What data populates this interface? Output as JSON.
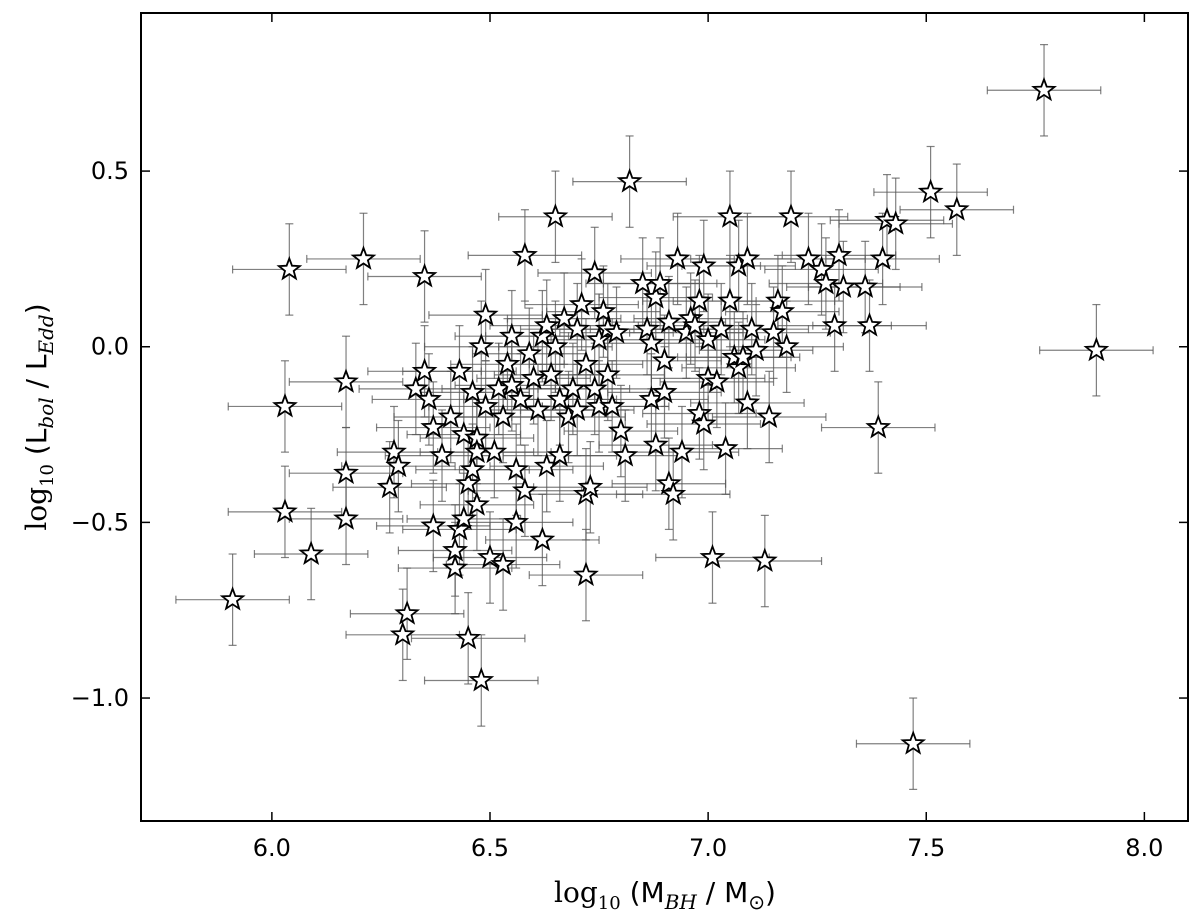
{
  "chart_data": {
    "type": "scatter",
    "title": "",
    "xlabel": {
      "log": "log",
      "sub": "10",
      "open": " (M",
      "sym_sub": "BH",
      "mid": " / M",
      "tail": "⊙",
      "close": ")"
    },
    "ylabel": {
      "log": "log",
      "sub": "10",
      "open": " (L",
      "sym_sub": "bol",
      "mid": " / L",
      "tail": "Edd",
      "close": ")"
    },
    "xlim": [
      5.7,
      8.1
    ],
    "ylim": [
      -1.35,
      0.95
    ],
    "xticks": [
      6.0,
      6.5,
      7.0,
      7.5,
      8.0
    ],
    "xtick_labels": [
      "6.0",
      "6.5",
      "7.0",
      "7.5",
      "8.0"
    ],
    "yticks": [
      -1.0,
      -0.5,
      0.0,
      0.5
    ],
    "ytick_labels": [
      "−1.0",
      "−0.5",
      "0.0",
      "0.5"
    ],
    "grid": false,
    "marker": "star",
    "marker_color": "#ffffff",
    "edge_color": "#000000",
    "errorbar_color": "#555555",
    "xerr": 0.13,
    "yerr": 0.13,
    "points": [
      [
        5.91,
        -0.72
      ],
      [
        6.03,
        -0.17
      ],
      [
        6.03,
        -0.47
      ],
      [
        6.04,
        0.22
      ],
      [
        6.09,
        -0.59
      ],
      [
        6.17,
        -0.1
      ],
      [
        6.17,
        -0.36
      ],
      [
        6.17,
        -0.49
      ],
      [
        6.21,
        0.25
      ],
      [
        6.27,
        -0.4
      ],
      [
        6.28,
        -0.3
      ],
      [
        6.29,
        -0.34
      ],
      [
        6.3,
        -0.82
      ],
      [
        6.31,
        -0.76
      ],
      [
        6.33,
        -0.12
      ],
      [
        6.35,
        -0.07
      ],
      [
        6.35,
        0.2
      ],
      [
        6.36,
        -0.15
      ],
      [
        6.37,
        -0.23
      ],
      [
        6.37,
        -0.51
      ],
      [
        6.39,
        -0.31
      ],
      [
        6.41,
        -0.2
      ],
      [
        6.42,
        -0.58
      ],
      [
        6.42,
        -0.63
      ],
      [
        6.43,
        -0.07
      ],
      [
        6.43,
        -0.52
      ],
      [
        6.44,
        -0.49
      ],
      [
        6.44,
        -0.25
      ],
      [
        6.45,
        -0.39
      ],
      [
        6.45,
        -0.83
      ],
      [
        6.46,
        -0.35
      ],
      [
        6.46,
        -0.13
      ],
      [
        6.47,
        -0.26
      ],
      [
        6.47,
        -0.3
      ],
      [
        6.47,
        -0.45
      ],
      [
        6.48,
        0.0
      ],
      [
        6.48,
        -0.95
      ],
      [
        6.49,
        0.09
      ],
      [
        6.49,
        -0.17
      ],
      [
        6.5,
        -0.6
      ],
      [
        6.51,
        -0.3
      ],
      [
        6.52,
        -0.12
      ],
      [
        6.53,
        -0.62
      ],
      [
        6.53,
        -0.2
      ],
      [
        6.54,
        -0.05
      ],
      [
        6.55,
        0.03
      ],
      [
        6.55,
        -0.11
      ],
      [
        6.56,
        -0.35
      ],
      [
        6.56,
        -0.5
      ],
      [
        6.57,
        -0.15
      ],
      [
        6.58,
        0.26
      ],
      [
        6.58,
        -0.41
      ],
      [
        6.59,
        -0.02
      ],
      [
        6.6,
        -0.09
      ],
      [
        6.61,
        -0.18
      ],
      [
        6.62,
        0.03
      ],
      [
        6.62,
        -0.55
      ],
      [
        6.63,
        0.06
      ],
      [
        6.63,
        -0.34
      ],
      [
        6.64,
        -0.08
      ],
      [
        6.65,
        0.37
      ],
      [
        6.65,
        0.0
      ],
      [
        6.66,
        -0.15
      ],
      [
        6.66,
        -0.31
      ],
      [
        6.67,
        0.08
      ],
      [
        6.68,
        -0.2
      ],
      [
        6.69,
        -0.12
      ],
      [
        6.7,
        0.05
      ],
      [
        6.7,
        -0.18
      ],
      [
        6.71,
        0.12
      ],
      [
        6.72,
        -0.42
      ],
      [
        6.72,
        -0.65
      ],
      [
        6.72,
        -0.05
      ],
      [
        6.73,
        -0.4
      ],
      [
        6.74,
        0.21
      ],
      [
        6.74,
        -0.12
      ],
      [
        6.75,
        0.02
      ],
      [
        6.75,
        -0.17
      ],
      [
        6.76,
        0.1
      ],
      [
        6.77,
        0.05
      ],
      [
        6.77,
        -0.08
      ],
      [
        6.78,
        -0.17
      ],
      [
        6.79,
        0.04
      ],
      [
        6.8,
        -0.24
      ],
      [
        6.81,
        -0.31
      ],
      [
        6.82,
        0.47
      ],
      [
        6.85,
        0.18
      ],
      [
        6.86,
        0.05
      ],
      [
        6.87,
        -0.15
      ],
      [
        6.87,
        0.01
      ],
      [
        6.88,
        0.14
      ],
      [
        6.88,
        -0.28
      ],
      [
        6.89,
        0.18
      ],
      [
        6.9,
        -0.04
      ],
      [
        6.9,
        -0.13
      ],
      [
        6.91,
        0.07
      ],
      [
        6.91,
        -0.39
      ],
      [
        6.92,
        -0.42
      ],
      [
        6.93,
        0.25
      ],
      [
        6.94,
        -0.3
      ],
      [
        6.95,
        0.04
      ],
      [
        6.96,
        0.08
      ],
      [
        6.97,
        0.06
      ],
      [
        6.98,
        0.13
      ],
      [
        6.98,
        -0.19
      ],
      [
        6.99,
        0.23
      ],
      [
        6.99,
        -0.22
      ],
      [
        7.0,
        0.02
      ],
      [
        7.0,
        -0.09
      ],
      [
        7.01,
        -0.6
      ],
      [
        7.02,
        -0.1
      ],
      [
        7.03,
        0.05
      ],
      [
        7.04,
        -0.29
      ],
      [
        7.05,
        0.37
      ],
      [
        7.05,
        0.13
      ],
      [
        7.06,
        -0.03
      ],
      [
        7.07,
        0.23
      ],
      [
        7.07,
        -0.06
      ],
      [
        7.08,
        -0.03
      ],
      [
        7.09,
        0.25
      ],
      [
        7.09,
        -0.16
      ],
      [
        7.1,
        0.05
      ],
      [
        7.11,
        -0.01
      ],
      [
        7.13,
        -0.61
      ],
      [
        7.14,
        -0.2
      ],
      [
        7.15,
        0.04
      ],
      [
        7.16,
        0.13
      ],
      [
        7.17,
        0.1
      ],
      [
        7.18,
        0.0
      ],
      [
        7.19,
        0.37
      ],
      [
        7.23,
        0.25
      ],
      [
        7.26,
        0.22
      ],
      [
        7.27,
        0.18
      ],
      [
        7.29,
        0.06
      ],
      [
        7.3,
        0.26
      ],
      [
        7.31,
        0.17
      ],
      [
        7.36,
        0.17
      ],
      [
        7.37,
        0.06
      ],
      [
        7.39,
        -0.23
      ],
      [
        7.4,
        0.25
      ],
      [
        7.41,
        0.36
      ],
      [
        7.43,
        0.35
      ],
      [
        7.47,
        -1.13
      ],
      [
        7.51,
        0.44
      ],
      [
        7.57,
        0.39
      ],
      [
        7.77,
        0.73
      ],
      [
        7.89,
        -0.01
      ]
    ]
  }
}
